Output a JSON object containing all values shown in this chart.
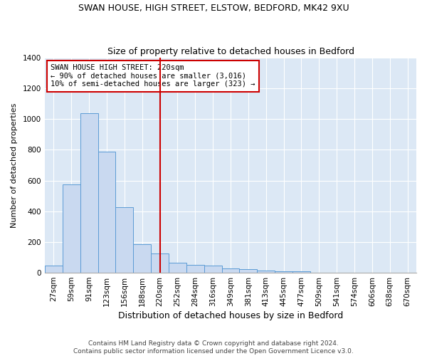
{
  "title1": "SWAN HOUSE, HIGH STREET, ELSTOW, BEDFORD, MK42 9XU",
  "title2": "Size of property relative to detached houses in Bedford",
  "xlabel": "Distribution of detached houses by size in Bedford",
  "ylabel": "Number of detached properties",
  "categories": [
    "27sqm",
    "59sqm",
    "91sqm",
    "123sqm",
    "156sqm",
    "188sqm",
    "220sqm",
    "252sqm",
    "284sqm",
    "316sqm",
    "349sqm",
    "381sqm",
    "413sqm",
    "445sqm",
    "477sqm",
    "509sqm",
    "541sqm",
    "574sqm",
    "606sqm",
    "638sqm",
    "670sqm"
  ],
  "values": [
    45,
    575,
    1040,
    790,
    425,
    185,
    125,
    65,
    50,
    45,
    28,
    22,
    15,
    10,
    10,
    0,
    0,
    0,
    0,
    0,
    0
  ],
  "bar_color": "#c9d9f0",
  "bar_edge_color": "#5b9bd5",
  "vline_idx": 6,
  "vline_color": "#cc0000",
  "annotation_line1": "SWAN HOUSE HIGH STREET: 220sqm",
  "annotation_line2": "← 90% of detached houses are smaller (3,016)",
  "annotation_line3": "10% of semi-detached houses are larger (323) →",
  "annotation_box_color": "white",
  "annotation_box_edge_color": "#cc0000",
  "ylim": [
    0,
    1400
  ],
  "yticks": [
    0,
    200,
    400,
    600,
    800,
    1000,
    1200,
    1400
  ],
  "background_color": "#dce8f5",
  "grid_color": "#ffffff",
  "footer_line1": "Contains HM Land Registry data © Crown copyright and database right 2024.",
  "footer_line2": "Contains public sector information licensed under the Open Government Licence v3.0.",
  "title1_fontsize": 9,
  "title2_fontsize": 9,
  "xlabel_fontsize": 9,
  "ylabel_fontsize": 8,
  "tick_fontsize": 7.5,
  "annot_fontsize": 7.5,
  "footer_fontsize": 6.5
}
